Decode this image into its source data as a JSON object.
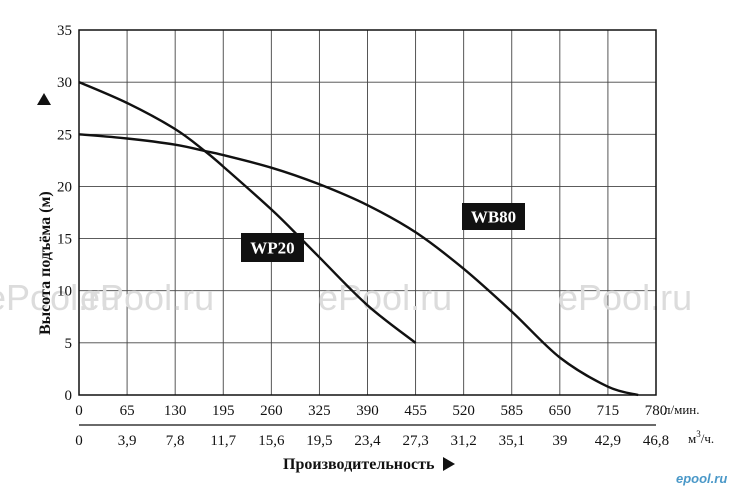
{
  "chart_data": {
    "type": "line",
    "xlabel": "Производительность",
    "ylabel": "Высота подъёма (м)",
    "x_unit_primary": "л/мин.",
    "x_unit_secondary_base": "м",
    "x_unit_secondary_sup": "3",
    "x_unit_secondary_tail": "/ч.",
    "xlim": [
      0,
      780
    ],
    "ylim": [
      0,
      35
    ],
    "x_ticks_primary": [
      "0",
      "65",
      "130",
      "195",
      "260",
      "325",
      "390",
      "455",
      "520",
      "585",
      "650",
      "715",
      "780"
    ],
    "x_ticks_secondary": [
      "0",
      "3,9",
      "7,8",
      "11,7",
      "15,6",
      "19,5",
      "23,4",
      "27,3",
      "31,2",
      "35,1",
      "39",
      "42,9",
      "46,8"
    ],
    "y_ticks": [
      "0",
      "5",
      "10",
      "15",
      "20",
      "25",
      "30",
      "35"
    ],
    "grid": true,
    "series": [
      {
        "name": "WP20",
        "x": [
          0,
          65,
          130,
          170,
          195,
          260,
          300,
          325,
          390,
          455
        ],
        "y": [
          30,
          28,
          25.5,
          23.4,
          21.9,
          17.8,
          15,
          13.2,
          8.6,
          5
        ]
      },
      {
        "name": "WB80",
        "x": [
          0,
          65,
          130,
          170,
          195,
          260,
          325,
          390,
          455,
          520,
          585,
          650,
          715,
          756
        ],
        "y": [
          25,
          24.6,
          24,
          23.4,
          23,
          21.8,
          20.2,
          18.2,
          15.6,
          12.1,
          8,
          3.6,
          0.8,
          0
        ]
      }
    ]
  },
  "watermark": {
    "text": "ePool.ru",
    "logo": "epool.ru"
  }
}
